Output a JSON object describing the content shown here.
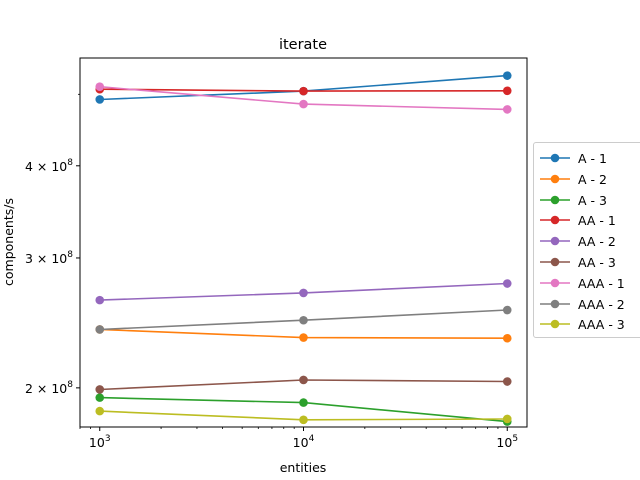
{
  "chart_data": {
    "type": "line",
    "title": "iterate",
    "xlabel": "entities",
    "ylabel": "components/s",
    "x": [
      1000,
      10000,
      100000
    ],
    "x_ticks": [
      {
        "value": 1000,
        "base": "10",
        "exp": "3"
      },
      {
        "value": 10000,
        "base": "10",
        "exp": "4"
      },
      {
        "value": 100000,
        "base": "10",
        "exp": "5"
      }
    ],
    "y_ticks": [
      {
        "value": 200000000,
        "mant": "2 × 10",
        "exp": "8"
      },
      {
        "value": 300000000,
        "mant": "3 × 10",
        "exp": "8"
      },
      {
        "value": 400000000,
        "mant": "4 × 10",
        "exp": "8"
      }
    ],
    "x_scale": "log",
    "y_scale": "log",
    "xlim": [
      800,
      125000
    ],
    "ylim": [
      177000000,
      560000000
    ],
    "grid": false,
    "legend_position": "right",
    "series": [
      {
        "name": "A - 1",
        "color": "#1f77b4",
        "values": [
          492000000,
          505000000,
          530000000
        ]
      },
      {
        "name": "A - 2",
        "color": "#ff7f0e",
        "values": [
          240000000,
          234000000,
          233500000
        ]
      },
      {
        "name": "A - 3",
        "color": "#2ca02c",
        "values": [
          194000000,
          191000000,
          180000000
        ]
      },
      {
        "name": "AA - 1",
        "color": "#d62728",
        "values": [
          508000000,
          505000000,
          505500000
        ]
      },
      {
        "name": "AA - 2",
        "color": "#9467bd",
        "values": [
          263000000,
          269000000,
          277000000
        ]
      },
      {
        "name": "AA - 3",
        "color": "#8c564b",
        "values": [
          199000000,
          205000000,
          204000000
        ]
      },
      {
        "name": "AAA - 1",
        "color": "#e377c2",
        "values": [
          512000000,
          485000000,
          477000000
        ]
      },
      {
        "name": "AAA - 2",
        "color": "#7f7f7f",
        "values": [
          240000000,
          247000000,
          255000000
        ]
      },
      {
        "name": "AAA - 3",
        "color": "#bcbd22",
        "values": [
          186000000,
          181000000,
          181500000
        ]
      }
    ]
  }
}
